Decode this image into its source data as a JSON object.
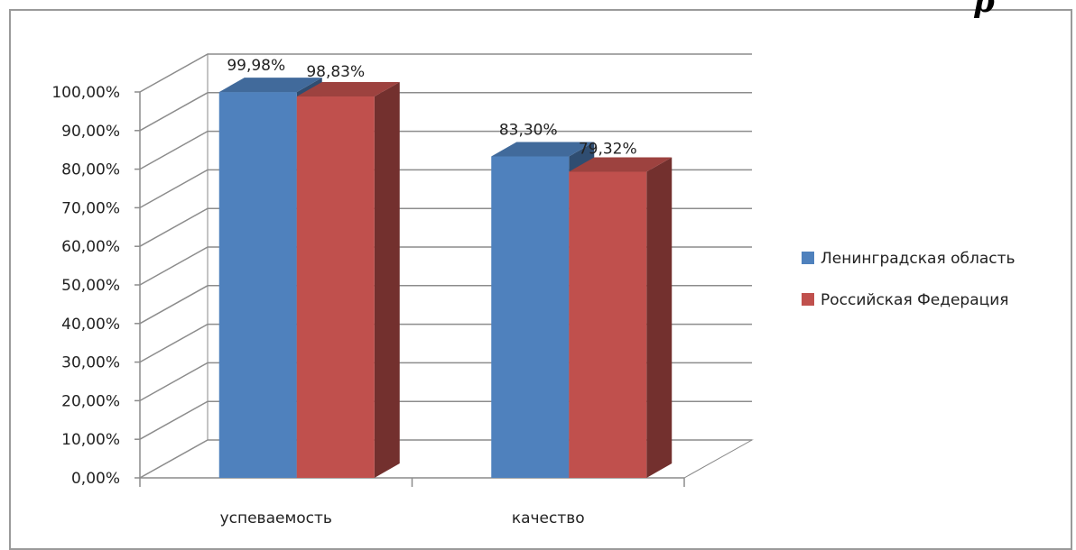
{
  "corner_mark": "р",
  "chart_data": {
    "type": "bar",
    "title": "",
    "xlabel": "",
    "ylabel": "",
    "categories": [
      "успеваемость",
      "качество"
    ],
    "series": [
      {
        "name": "Ленинградская область",
        "values": [
          99.98,
          83.3
        ],
        "labels": [
          "99,98%",
          "83,30%"
        ],
        "color": "#4F81BD"
      },
      {
        "name": "Российская Федерация",
        "values": [
          98.83,
          79.32
        ],
        "labels": [
          "98,83%",
          "79,32%"
        ],
        "color": "#C0504D"
      }
    ],
    "ylim": [
      0,
      100
    ],
    "yticks": [
      "0,00%",
      "10,00%",
      "20,00%",
      "30,00%",
      "40,00%",
      "50,00%",
      "60,00%",
      "70,00%",
      "80,00%",
      "90,00%",
      "100,00%"
    ],
    "grid": true,
    "style": "3d-column",
    "legend_position": "right"
  }
}
